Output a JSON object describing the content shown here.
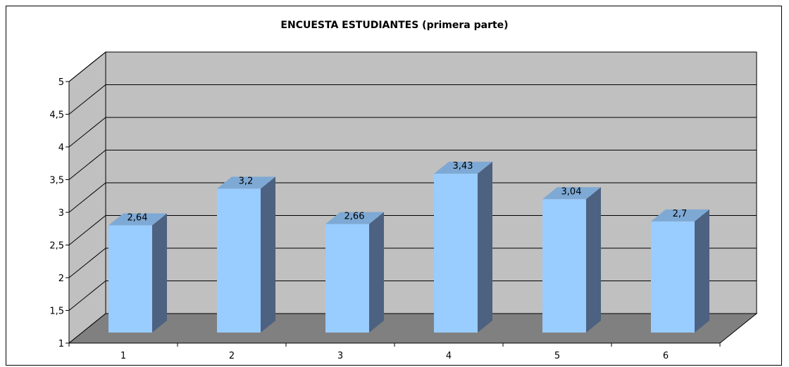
{
  "chart_data": {
    "type": "bar",
    "title": "ENCUESTA ESTUDIANTES (primera parte)",
    "categories": [
      "1",
      "2",
      "3",
      "4",
      "5",
      "6"
    ],
    "values": [
      2.64,
      3.2,
      2.66,
      3.43,
      3.04,
      2.7
    ],
    "data_labels": [
      "2,64",
      "3,2",
      "2,66",
      "3,43",
      "3,04",
      "2,7"
    ],
    "y_ticks": [
      1,
      1.5,
      2,
      2.5,
      3,
      3.5,
      4,
      4.5,
      5
    ],
    "y_tick_labels": [
      "1",
      "1,5",
      "2",
      "2,5",
      "3",
      "3,5",
      "4",
      "4,5",
      "5"
    ],
    "ylim": [
      1,
      5
    ],
    "xlabel": "",
    "ylabel": "",
    "grid": true,
    "legend": "none",
    "style": "3d",
    "colors": {
      "bar_front": "#99ccff",
      "bar_top": "#7ea9d4",
      "bar_side": "#4d6180",
      "wall": "#c0c0c0",
      "floor": "#808080",
      "grid": "#000000"
    }
  }
}
